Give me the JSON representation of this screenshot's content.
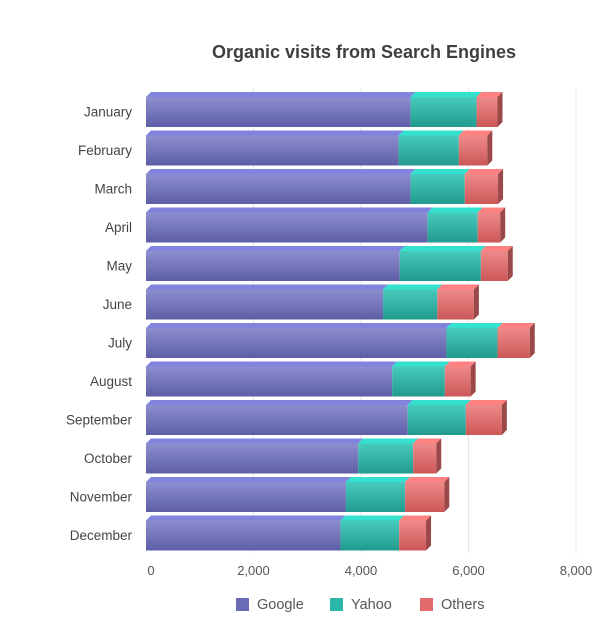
{
  "chart_data": {
    "type": "bar",
    "orientation": "horizontal",
    "stacked": true,
    "style_3d": true,
    "title": "Organic visits from Search Engines",
    "xlabel": "",
    "ylabel": "",
    "categories": [
      "January",
      "February",
      "March",
      "April",
      "May",
      "June",
      "July",
      "August",
      "September",
      "October",
      "November",
      "December"
    ],
    "series": [
      {
        "name": "Google",
        "color": "#6a6bb5",
        "values": [
          4920,
          4700,
          4920,
          5240,
          4720,
          4410,
          5590,
          4580,
          4870,
          3950,
          3720,
          3620
        ]
      },
      {
        "name": "Yahoo",
        "color": "#2bb8a9",
        "values": [
          1230,
          1120,
          1010,
          930,
          1510,
          1010,
          950,
          980,
          1080,
          1020,
          1100,
          1090
        ]
      },
      {
        "name": "Others",
        "color": "#e26a6a",
        "values": [
          390,
          530,
          620,
          420,
          500,
          680,
          600,
          480,
          670,
          430,
          730,
          500
        ]
      }
    ],
    "xlim": [
      0,
      8000
    ],
    "xticks": [
      0,
      2000,
      4000,
      6000,
      8000
    ],
    "xtick_labels": [
      "0",
      "2,000",
      "4,000",
      "6,000",
      "8,000"
    ],
    "grid": true,
    "legend_position": "bottom"
  }
}
